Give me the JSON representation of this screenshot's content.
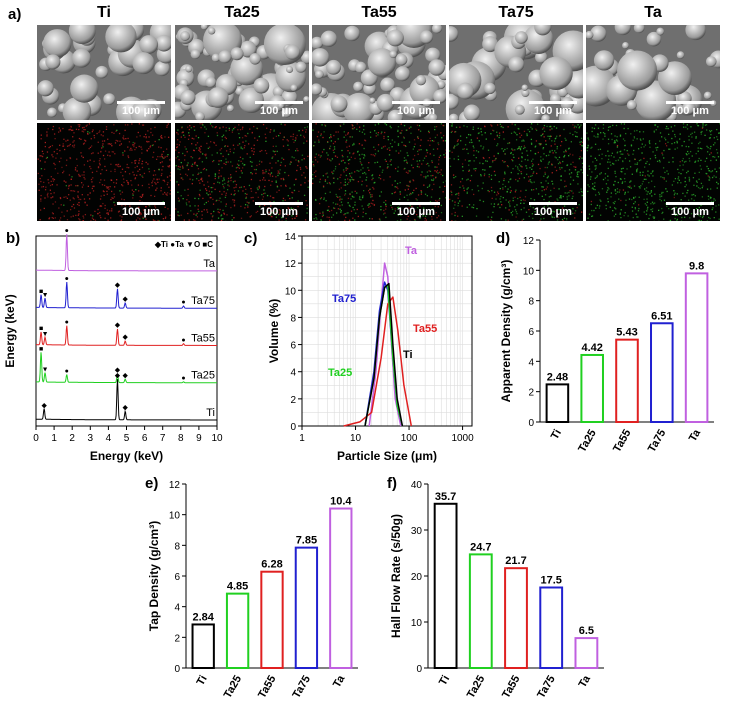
{
  "panel_a": {
    "letter": "a)",
    "samples": [
      "Ti",
      "Ta25",
      "Ta55",
      "Ta75",
      "Ta"
    ],
    "scale_label": "100 μm"
  },
  "chart_data": [
    {
      "id": "b",
      "letter": "b)",
      "type": "line",
      "xlabel": "Energy (keV)",
      "ylabel": "Energy (keV)",
      "xlim": [
        0,
        10
      ],
      "xticks": [
        0,
        1,
        2,
        3,
        4,
        5,
        6,
        7,
        8,
        9,
        10
      ],
      "legend": "◆Ti ●Ta ▼O ■C",
      "series": [
        {
          "name": "Ta",
          "color": "#c060e0",
          "offset": 4,
          "peaks": [
            {
              "x": 1.7,
              "h": 0.85,
              "mark": "●"
            }
          ]
        },
        {
          "name": "Ta75",
          "color": "#2020d0",
          "offset": 3,
          "peaks": [
            {
              "x": 0.28,
              "h": 0.3,
              "mark": "■"
            },
            {
              "x": 0.5,
              "h": 0.22,
              "mark": "▼"
            },
            {
              "x": 1.7,
              "h": 0.6,
              "mark": "●"
            },
            {
              "x": 4.5,
              "h": 0.45,
              "mark": "◆"
            },
            {
              "x": 4.93,
              "h": 0.12,
              "mark": "◆"
            },
            {
              "x": 8.15,
              "h": 0.05,
              "mark": "●"
            }
          ]
        },
        {
          "name": "Ta55",
          "color": "#e02020",
          "offset": 2,
          "peaks": [
            {
              "x": 0.28,
              "h": 0.3,
              "mark": "■"
            },
            {
              "x": 0.5,
              "h": 0.18,
              "mark": "▼"
            },
            {
              "x": 1.7,
              "h": 0.45,
              "mark": "●"
            },
            {
              "x": 4.5,
              "h": 0.38,
              "mark": "◆"
            },
            {
              "x": 4.93,
              "h": 0.1,
              "mark": "◆"
            },
            {
              "x": 8.15,
              "h": 0.04,
              "mark": "●"
            }
          ]
        },
        {
          "name": "Ta25",
          "color": "#20d020",
          "offset": 1,
          "peaks": [
            {
              "x": 0.28,
              "h": 0.7,
              "mark": "■"
            },
            {
              "x": 0.5,
              "h": 0.22,
              "mark": "▼"
            },
            {
              "x": 1.7,
              "h": 0.18,
              "mark": "●"
            },
            {
              "x": 4.5,
              "h": 0.2,
              "mark": "◆"
            },
            {
              "x": 4.93,
              "h": 0.08,
              "mark": "◆"
            },
            {
              "x": 8.15,
              "h": 0.02,
              "mark": "●"
            }
          ]
        },
        {
          "name": "Ti",
          "color": "#000000",
          "offset": 0,
          "peaks": [
            {
              "x": 0.45,
              "h": 0.25,
              "mark": "◆"
            },
            {
              "x": 4.5,
              "h": 0.95,
              "mark": "◆"
            },
            {
              "x": 4.93,
              "h": 0.2,
              "mark": "◆"
            }
          ]
        }
      ]
    },
    {
      "id": "c",
      "letter": "c)",
      "type": "line",
      "xlabel": "Particle Size (μm)",
      "ylabel": "Volume (%)",
      "xscale": "log",
      "xlim": [
        1,
        1500
      ],
      "ylim": [
        0,
        14
      ],
      "yticks": [
        0,
        2,
        4,
        6,
        8,
        10,
        12,
        14
      ],
      "xticks": [
        1,
        10,
        100,
        1000
      ],
      "grid": true,
      "series": [
        {
          "name": "Ta",
          "color": "#c060e0",
          "x": [
            18,
            24,
            30,
            35,
            40,
            47,
            55,
            70
          ],
          "y": [
            0,
            4,
            9,
            12,
            11,
            6,
            2,
            0
          ]
        },
        {
          "name": "Ta75",
          "color": "#2020d0",
          "x": [
            15,
            22,
            28,
            35,
            40,
            50,
            60,
            75
          ],
          "y": [
            0,
            4,
            8.5,
            10.6,
            10,
            5,
            1.5,
            0
          ]
        },
        {
          "name": "Ta55",
          "color": "#e02020",
          "x": [
            6,
            12,
            20,
            30,
            40,
            50,
            62,
            80,
            110
          ],
          "y": [
            0,
            0.3,
            1,
            5,
            9,
            9.5,
            7,
            3,
            0
          ]
        },
        {
          "name": "Ta25",
          "color": "#20d020",
          "x": [
            15,
            22,
            28,
            35,
            40,
            50,
            60,
            75
          ],
          "y": [
            0,
            3.5,
            8,
            10.2,
            10.4,
            5,
            1.5,
            0
          ]
        },
        {
          "name": "Ti",
          "color": "#000000",
          "x": [
            15,
            22,
            28,
            35,
            42,
            50,
            60,
            75
          ],
          "y": [
            0,
            3.5,
            8,
            10.2,
            10.5,
            6,
            2,
            0
          ]
        }
      ]
    },
    {
      "id": "d",
      "letter": "d)",
      "type": "bar",
      "ylabel": "Apparent Density (g/cm³)",
      "ylim": [
        0,
        12
      ],
      "yticks": [
        0,
        2,
        4,
        6,
        8,
        10,
        12
      ],
      "categories": [
        "Ti",
        "Ta25",
        "Ta55",
        "Ta75",
        "Ta"
      ],
      "values": [
        2.48,
        4.42,
        5.43,
        6.51,
        9.8
      ],
      "value_labels": [
        "2.48",
        "4.42",
        "5.43",
        "6.51",
        "9.8"
      ],
      "colors": [
        "#000000",
        "#20d020",
        "#e02020",
        "#2020d0",
        "#c060e0"
      ]
    },
    {
      "id": "e",
      "letter": "e)",
      "type": "bar",
      "ylabel": "Tap Density (g/cm³)",
      "ylim": [
        0,
        12
      ],
      "yticks": [
        0,
        2,
        4,
        6,
        8,
        10,
        12
      ],
      "categories": [
        "Ti",
        "Ta25",
        "Ta55",
        "Ta75",
        "Ta"
      ],
      "values": [
        2.84,
        4.85,
        6.28,
        7.85,
        10.4
      ],
      "value_labels": [
        "2.84",
        "4.85",
        "6.28",
        "7.85",
        "10.4"
      ],
      "colors": [
        "#000000",
        "#20d020",
        "#e02020",
        "#2020d0",
        "#c060e0"
      ]
    },
    {
      "id": "f",
      "letter": "f)",
      "type": "bar",
      "ylabel": "Hall Flow Rate (s/50g)",
      "ylim": [
        0,
        40
      ],
      "yticks": [
        0,
        10,
        20,
        30,
        40
      ],
      "categories": [
        "Ti",
        "Ta25",
        "Ta55",
        "Ta75",
        "Ta"
      ],
      "values": [
        35.7,
        24.7,
        21.7,
        17.5,
        6.5
      ],
      "value_labels": [
        "35.7",
        "24.7",
        "21.7",
        "17.5",
        "6.5"
      ],
      "colors": [
        "#000000",
        "#20d020",
        "#e02020",
        "#2020d0",
        "#c060e0"
      ]
    }
  ]
}
